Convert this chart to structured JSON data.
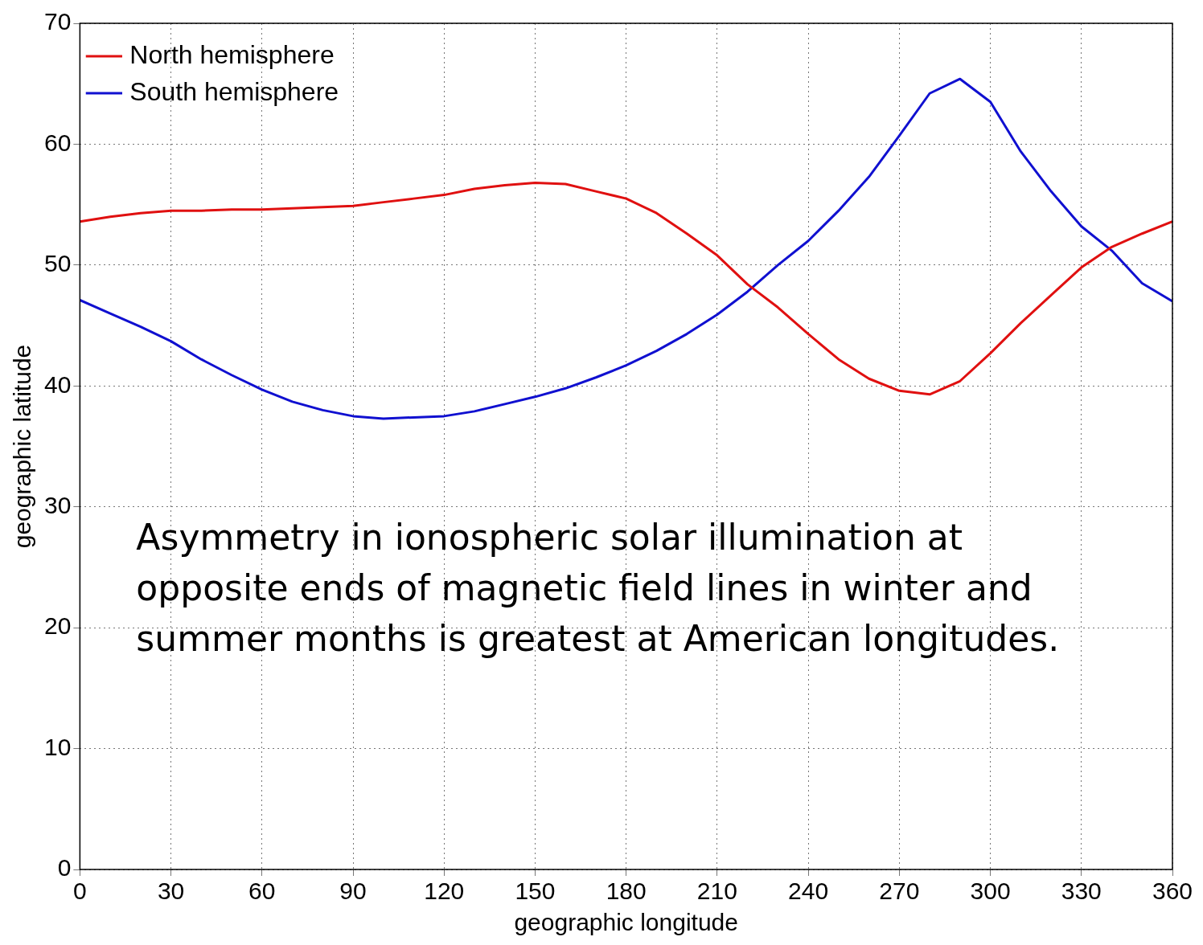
{
  "chart_data": {
    "type": "line",
    "xlabel": "geographic longitude",
    "ylabel": "geographic latitude",
    "x": [
      0,
      10,
      20,
      30,
      40,
      50,
      60,
      70,
      80,
      90,
      100,
      110,
      120,
      130,
      140,
      150,
      160,
      170,
      180,
      190,
      200,
      210,
      220,
      230,
      240,
      250,
      260,
      270,
      280,
      290,
      300,
      310,
      320,
      330,
      340,
      350,
      360
    ],
    "series": [
      {
        "name": "North hemisphere",
        "color": "#e01010",
        "values": [
          53.6,
          54.0,
          54.3,
          54.5,
          54.5,
          54.6,
          54.6,
          54.7,
          54.8,
          54.9,
          55.2,
          55.5,
          55.8,
          56.3,
          56.6,
          56.8,
          56.7,
          56.1,
          55.5,
          54.3,
          52.6,
          50.8,
          48.4,
          46.5,
          44.3,
          42.2,
          40.6,
          39.6,
          39.3,
          40.4,
          42.7,
          45.2,
          47.5,
          49.8,
          51.5,
          52.6,
          53.6
        ]
      },
      {
        "name": "South hemisphere",
        "color": "#1010d0",
        "values": [
          47.1,
          46.0,
          44.9,
          43.7,
          42.2,
          40.9,
          39.7,
          38.7,
          38.0,
          37.5,
          37.3,
          37.4,
          37.5,
          37.9,
          38.5,
          39.1,
          39.8,
          40.7,
          41.7,
          42.9,
          44.3,
          45.9,
          47.8,
          50.0,
          52.0,
          54.5,
          57.3,
          60.7,
          64.2,
          65.4,
          63.5,
          59.4,
          56.1,
          53.2,
          51.2,
          48.5,
          47.0
        ]
      }
    ],
    "xlim": [
      0,
      360
    ],
    "xticks": [
      0,
      30,
      60,
      90,
      120,
      150,
      180,
      210,
      240,
      270,
      300,
      330,
      360
    ],
    "ylim": [
      0,
      70
    ],
    "yticks": [
      0,
      10,
      20,
      30,
      40,
      50,
      60,
      70
    ],
    "grid": true,
    "legend": "top left",
    "marker": "none",
    "line_style": "solid",
    "annotations": [
      "Asymmetry in ionospheric solar illumination at opposite ends of magnetic field lines in winter and summer months is greatest at American longitudes."
    ]
  }
}
